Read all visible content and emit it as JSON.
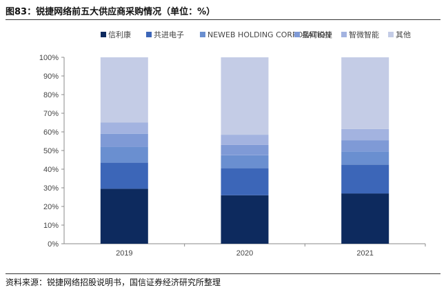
{
  "header": {
    "title": "图83：锐捷网络前五大供应商采购情况（单位：%）"
  },
  "footer": {
    "source": "资料来源：锐捷网络招股说明书，国信证券经济研究所整理"
  },
  "colors": {
    "信利康": "#0d2a5e",
    "共进电子": "#3c66b8",
    "NEWEB HOLDING CORPORATION": "#6a8fd0",
    "星网锐捷": "#7f9ad6",
    "智微智能": "#a3b3e0",
    "其他": "#c4cce6"
  },
  "chart_data": {
    "type": "bar",
    "stacked": true,
    "categories": [
      "2019",
      "2020",
      "2021"
    ],
    "series": [
      {
        "name": "信利康",
        "values": [
          29.5,
          26,
          27
        ]
      },
      {
        "name": "共进电子",
        "values": [
          14,
          14.5,
          15.5
        ]
      },
      {
        "name": "NEWEB HOLDING CORPORATION",
        "values": [
          8.5,
          7,
          7
        ]
      },
      {
        "name": "星网锐捷",
        "values": [
          7,
          5.5,
          6
        ]
      },
      {
        "name": "智微智能",
        "values": [
          6,
          5.5,
          6
        ]
      },
      {
        "name": "其他",
        "values": [
          35,
          41.5,
          38.5
        ]
      }
    ],
    "ylim": [
      0,
      100
    ],
    "yticks": [
      "0%",
      "10%",
      "20%",
      "30%",
      "40%",
      "50%",
      "60%",
      "70%",
      "80%",
      "90%",
      "100%"
    ],
    "legend_position": "top",
    "grid": false
  }
}
